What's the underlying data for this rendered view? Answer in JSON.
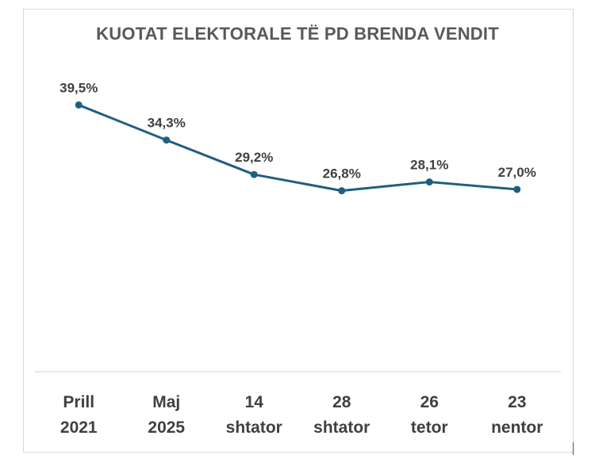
{
  "chart_data": {
    "type": "line",
    "title": "KUOTAT ELEKTORALE TË PD BRENDA VENDIT",
    "categories": [
      [
        "Prill",
        "2021"
      ],
      [
        "Maj",
        "2025"
      ],
      [
        "14",
        "shtator"
      ],
      [
        "28",
        "shtator"
      ],
      [
        "26",
        "tetor"
      ],
      [
        "23",
        "nentor"
      ]
    ],
    "series": [
      {
        "values": [
          39.5,
          34.3,
          29.2,
          26.8,
          28.1,
          27.0
        ],
        "labels": [
          "39,5%",
          "34,3%",
          "29,2%",
          "26,8%",
          "28,1%",
          "27,0%"
        ],
        "color": "#1f5f7f"
      }
    ],
    "ylim": [
      0,
      48
    ],
    "grid": false,
    "legend": "none",
    "axis_color": "#d9d9d9"
  }
}
